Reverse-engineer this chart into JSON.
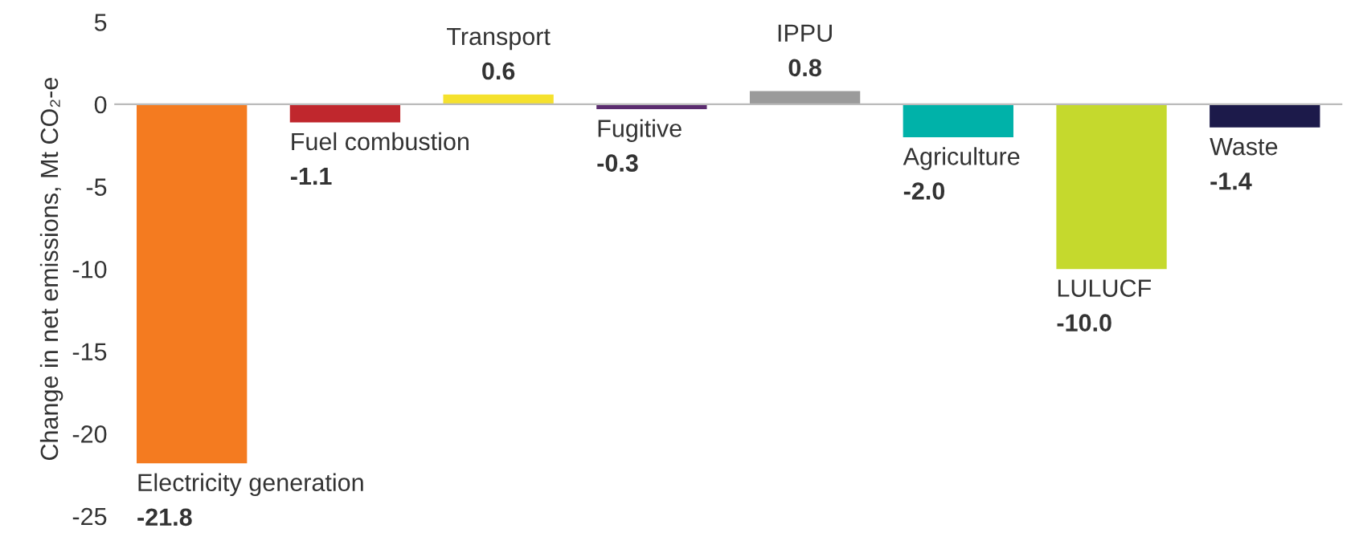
{
  "chart_data": {
    "type": "bar",
    "categories": [
      "Electricity generation",
      "Fuel combustion",
      "Transport",
      "Fugitive",
      "IPPU",
      "Agriculture",
      "LULUCF",
      "Waste"
    ],
    "values": [
      -21.8,
      -1.1,
      0.6,
      -0.3,
      0.8,
      -2.0,
      -10.0,
      -1.4
    ],
    "value_labels": [
      "-21.8",
      "-1.1",
      "0.6",
      "-0.3",
      "0.8",
      "-2.0",
      "-10.0",
      "-1.4"
    ],
    "colors": [
      "#f47b20",
      "#c0272d",
      "#f5e12d",
      "#5b2c6f",
      "#9b9b9b",
      "#00b2a9",
      "#c5d92d",
      "#1c1a4a"
    ],
    "ylabel": "Change in net emissions, Mt CO₂-e",
    "ylim": [
      -25,
      5
    ],
    "yticks": [
      -25,
      -20,
      -15,
      -10,
      -5,
      0,
      5
    ],
    "grid": false,
    "legend": false
  }
}
